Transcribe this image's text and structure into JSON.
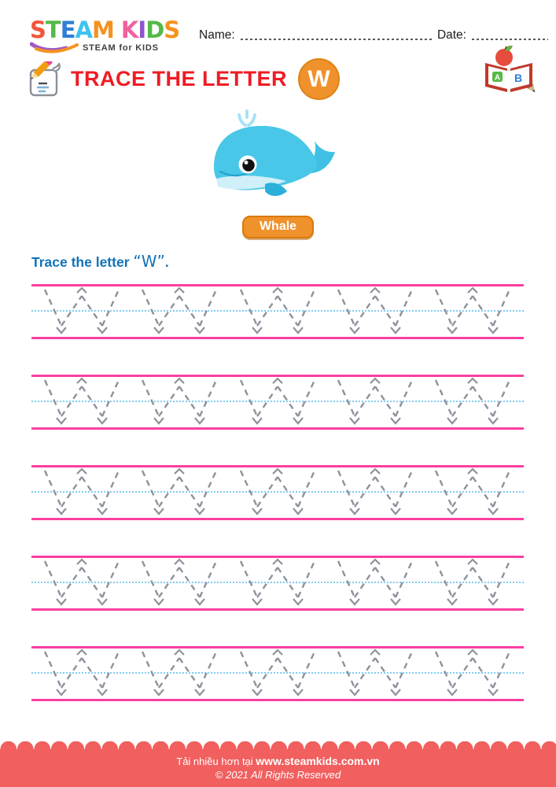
{
  "logo": {
    "letters": [
      {
        "ch": "S",
        "color": "#f2553a"
      },
      {
        "ch": "T",
        "color": "#55b948"
      },
      {
        "ch": "E",
        "color": "#2f7fd6"
      },
      {
        "ch": "A",
        "color": "#3cc3f0"
      },
      {
        "ch": "M",
        "color": "#f6921e"
      },
      {
        "ch": " ",
        "color": "#000000"
      },
      {
        "ch": "K",
        "color": "#f2609e"
      },
      {
        "ch": "I",
        "color": "#8f52cc"
      },
      {
        "ch": "D",
        "color": "#55b948"
      },
      {
        "ch": "S",
        "color": "#f6921e"
      }
    ],
    "tagline": "STEAM for KIDS"
  },
  "header": {
    "name_label": "Name:",
    "date_label": "Date:"
  },
  "title": {
    "text": "TRACE THE LETTER",
    "badge_letter": "W"
  },
  "subject": {
    "label": "Whale"
  },
  "instruction": {
    "prefix": "Trace the letter ",
    "quoted_letter": "“W”",
    "suffix": "."
  },
  "trace": {
    "letter": "W",
    "rows": 5,
    "letters_per_row": 5
  },
  "footer": {
    "download_prefix": "Tải nhiều hơn tại",
    "url": "www.steamkids.com.vn",
    "copyright": "© 2021 All Rights Reserved"
  },
  "icons": {
    "writing_icon": "pencil-writing-on-paper",
    "abc_book_icon": "open-book-with-apple-and-pencil",
    "whale_illustration": "cartoon-blue-whale",
    "logo_swoosh_icon": "purple-orange-swoosh"
  },
  "colors": {
    "heading_red": "#ee1c24",
    "accent_orange": "#f0922b",
    "instruction_blue": "#1173b9",
    "guide_line_pink": "#fa3f9f",
    "guide_midline_blue": "#7fcdf3",
    "trace_glyph_gray": "#8d929b",
    "footer_red": "#f15f5f"
  }
}
